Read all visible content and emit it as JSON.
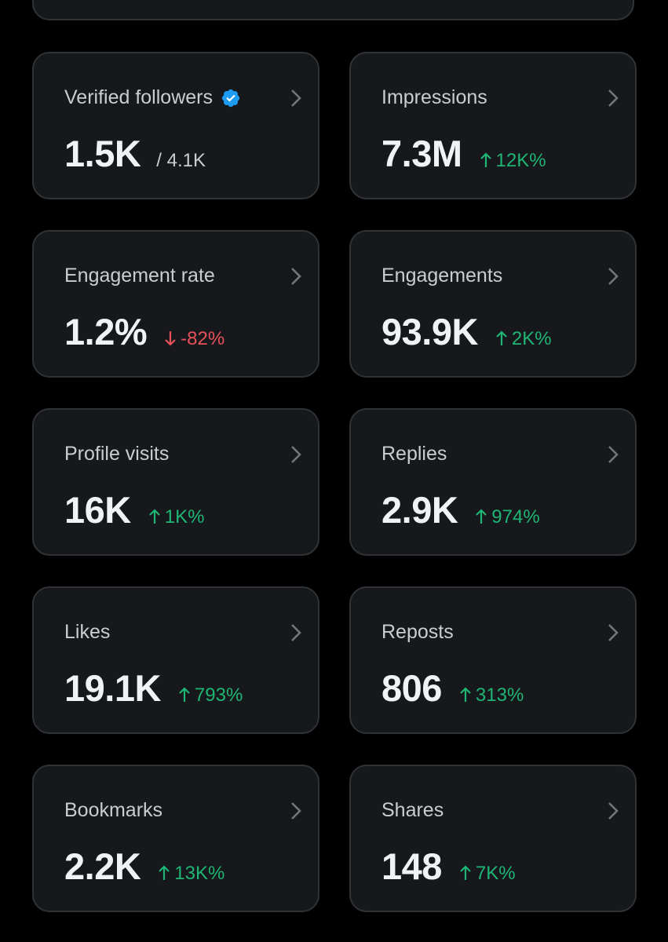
{
  "colors": {
    "background": "#000000",
    "card_background": "#16181c",
    "card_border": "#2f3336",
    "positive": "#1fb574",
    "negative": "#e8515a",
    "verified": "#1d9bf0"
  },
  "cards": [
    {
      "label": "Verified followers",
      "value": "1.5K",
      "sub": "/ 4.1K",
      "verified_icon": "verified-badge-icon"
    },
    {
      "label": "Impressions",
      "value": "7.3M",
      "delta": "12K%",
      "direction": "up"
    },
    {
      "label": "Engagement rate",
      "value": "1.2%",
      "delta": "-82%",
      "direction": "down"
    },
    {
      "label": "Engagements",
      "value": "93.9K",
      "delta": "2K%",
      "direction": "up"
    },
    {
      "label": "Profile visits",
      "value": "16K",
      "delta": "1K%",
      "direction": "up"
    },
    {
      "label": "Replies",
      "value": "2.9K",
      "delta": "974%",
      "direction": "up"
    },
    {
      "label": "Likes",
      "value": "19.1K",
      "delta": "793%",
      "direction": "up"
    },
    {
      "label": "Reposts",
      "value": "806",
      "delta": "313%",
      "direction": "up"
    },
    {
      "label": "Bookmarks",
      "value": "2.2K",
      "delta": "13K%",
      "direction": "up"
    },
    {
      "label": "Shares",
      "value": "148",
      "delta": "7K%",
      "direction": "up"
    }
  ]
}
